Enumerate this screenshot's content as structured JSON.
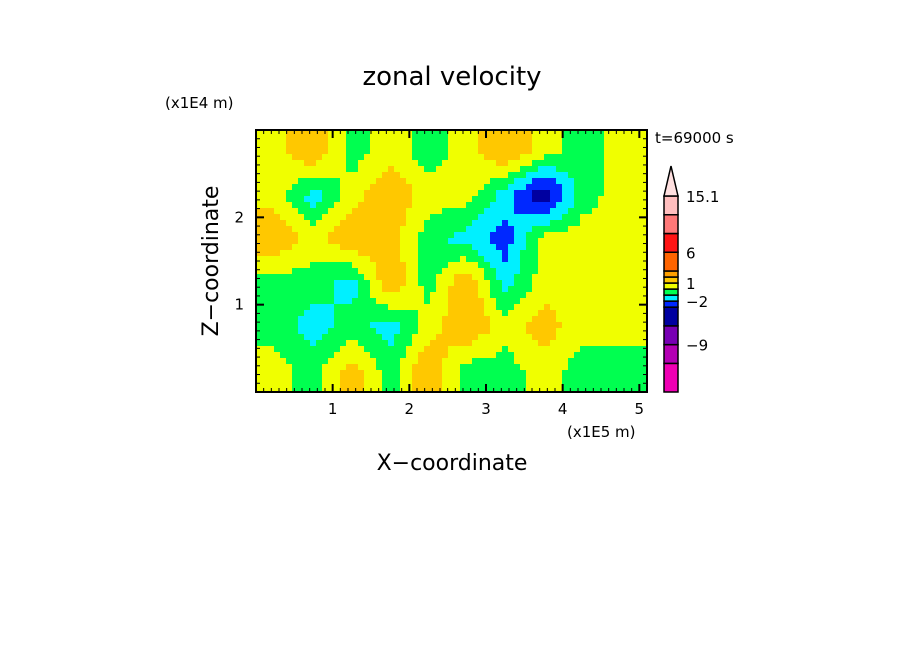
{
  "chart_data": {
    "type": "heatmap",
    "title": "zonal velocity",
    "xlabel": "X−coordinate",
    "ylabel": "Z−coordinate",
    "x_unit_label": "(x1E5 m)",
    "y_unit_label": "(x1E4 m)",
    "time_label": "t=69000 s",
    "xlim": [
      0,
      5.1
    ],
    "ylim": [
      0,
      3
    ],
    "xticks": [
      1,
      2,
      3,
      4,
      5
    ],
    "yticks": [
      1,
      2
    ],
    "xtick_labels": [
      "1",
      "2",
      "3",
      "4",
      "5"
    ],
    "ytick_labels": [
      "1",
      "2"
    ],
    "grid": false,
    "colorbar": {
      "levels": [
        -15,
        -12,
        -9,
        -6,
        -3,
        -2,
        -1,
        0,
        1,
        2,
        3,
        6,
        9,
        12,
        15.1
      ],
      "labels": [
        "15.1",
        "6",
        "1",
        "−2",
        "−9"
      ],
      "label_values": [
        15.1,
        6,
        1,
        -2,
        -9
      ],
      "colors": [
        "#f000b4",
        "#b400b4",
        "#7800b4",
        "#0000a0",
        "#0028ff",
        "#00f0ff",
        "#00ff50",
        "#f0ff00",
        "#ffc800",
        "#ffa000",
        "#ff6400",
        "#ff1414",
        "#ff7878",
        "#ffbebe"
      ],
      "over_color": "#ffe0e0"
    },
    "x": [
      0.25,
      0.75,
      1.25,
      1.75,
      2.25,
      2.75,
      3.25,
      3.75,
      4.25,
      4.75
    ],
    "z": [
      2.75,
      2.25,
      1.75,
      1.25,
      0.75,
      0.25
    ],
    "values": [
      [
        0.5,
        2,
        -0.5,
        0.5,
        -0.5,
        0.5,
        2,
        0.5,
        -0.5,
        0.5
      ],
      [
        0.5,
        -1.5,
        0.5,
        2,
        0.5,
        0.5,
        -1.5,
        -4,
        -0.5,
        0.5
      ],
      [
        2,
        0.5,
        2,
        1.5,
        -0.5,
        -1.5,
        -2.5,
        0.5,
        0.5,
        0.5
      ],
      [
        -0.5,
        -0.5,
        -1.5,
        2,
        -0.5,
        2,
        -1.5,
        0.5,
        0.5,
        0.5
      ],
      [
        -0.5,
        -1.5,
        -0.5,
        -1.5,
        0.5,
        2,
        0.5,
        1.5,
        0.5,
        0.5
      ],
      [
        0.5,
        -0.5,
        1.5,
        -0.5,
        2,
        -0.5,
        -0.5,
        0.5,
        -0.5,
        -0.5
      ]
    ]
  }
}
